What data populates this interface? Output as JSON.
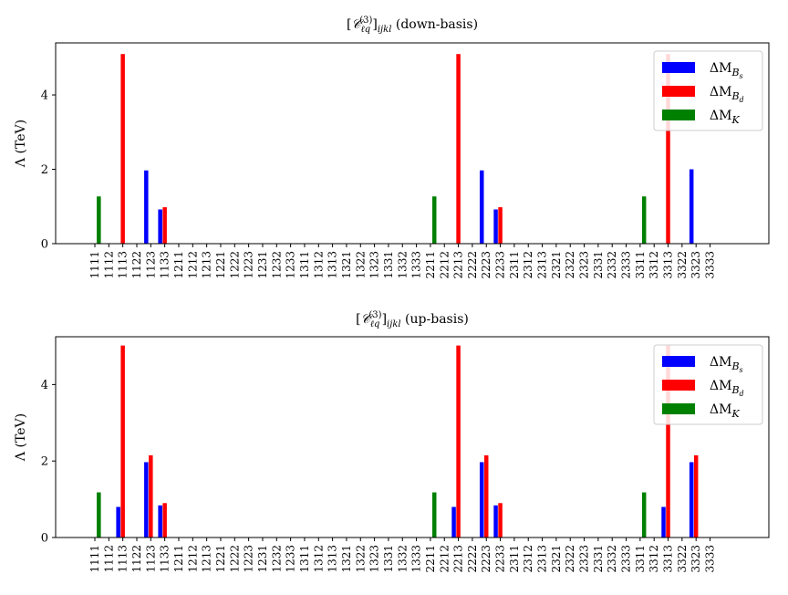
{
  "chart_data": [
    {
      "type": "bar",
      "title": "[C_ℓq^(3)]_ijkl (down-basis)",
      "ylabel": "Λ (TeV)",
      "ylim": [
        0,
        5.4
      ],
      "yticks": [
        0,
        2,
        4
      ],
      "legend_placement": "top-right",
      "grid": false,
      "categories": [
        "1111",
        "1112",
        "1113",
        "1122",
        "1123",
        "1133",
        "1211",
        "1212",
        "1213",
        "1221",
        "1222",
        "1223",
        "1231",
        "1232",
        "1233",
        "1311",
        "1312",
        "1313",
        "1321",
        "1322",
        "1323",
        "1331",
        "1332",
        "1333",
        "2211",
        "2212",
        "2213",
        "2222",
        "2223",
        "2233",
        "2311",
        "2312",
        "2313",
        "2321",
        "2322",
        "2323",
        "2331",
        "2332",
        "2333",
        "3311",
        "3312",
        "3313",
        "3322",
        "3323",
        "3333"
      ],
      "series": [
        {
          "name": "ΔM_Bs",
          "color": "#0000ff",
          "values": [
            0,
            0,
            0,
            0,
            1.97,
            0.92,
            0,
            0,
            0,
            0,
            0,
            0,
            0,
            0,
            0,
            0,
            0,
            0,
            0,
            0,
            0,
            0,
            0,
            0,
            0,
            0,
            0,
            0,
            1.97,
            0.92,
            0,
            0,
            0,
            0,
            0,
            0,
            0,
            0,
            0,
            0,
            0,
            0,
            0,
            2.0,
            0
          ]
        },
        {
          "name": "ΔM_Bd",
          "color": "#ff0000",
          "values": [
            0,
            0,
            5.1,
            0,
            0,
            0.98,
            0,
            0,
            0,
            0,
            0,
            0,
            0,
            0,
            0,
            0,
            0,
            0,
            0,
            0,
            0,
            0,
            0,
            0,
            0,
            0,
            5.1,
            0,
            0,
            0.98,
            0,
            0,
            0,
            0,
            0,
            0,
            0,
            0,
            0,
            0,
            0,
            5.1,
            0,
            0,
            0
          ]
        },
        {
          "name": "ΔM_K",
          "color": "#008000",
          "values": [
            0,
            1.27,
            0,
            0,
            0,
            0,
            0,
            0,
            0,
            0,
            0,
            0,
            0,
            0,
            0,
            0,
            0,
            0,
            0,
            0,
            0,
            0,
            0,
            0,
            0,
            1.27,
            0,
            0,
            0,
            0,
            0,
            0,
            0,
            0,
            0,
            0,
            0,
            0,
            0,
            0,
            1.27,
            0,
            0,
            0,
            0
          ]
        }
      ]
    },
    {
      "type": "bar",
      "title": "[C_ℓq^(3)]_ijkl (up-basis)",
      "ylabel": "Λ (TeV)",
      "ylim": [
        0,
        5.25
      ],
      "yticks": [
        0,
        2,
        4
      ],
      "legend_placement": "top-right",
      "grid": false,
      "categories": [
        "1111",
        "1112",
        "1113",
        "1122",
        "1123",
        "1133",
        "1211",
        "1212",
        "1213",
        "1221",
        "1222",
        "1223",
        "1231",
        "1232",
        "1233",
        "1311",
        "1312",
        "1313",
        "1321",
        "1322",
        "1323",
        "1331",
        "1332",
        "1333",
        "2211",
        "2212",
        "2213",
        "2222",
        "2223",
        "2233",
        "2311",
        "2312",
        "2313",
        "2321",
        "2322",
        "2323",
        "2331",
        "2332",
        "2333",
        "3311",
        "3312",
        "3313",
        "3322",
        "3323",
        "3333"
      ],
      "series": [
        {
          "name": "ΔM_Bs",
          "color": "#0000ff",
          "values": [
            0,
            0,
            0.8,
            0,
            1.97,
            0.84,
            0,
            0,
            0,
            0,
            0,
            0,
            0,
            0,
            0,
            0,
            0,
            0,
            0,
            0,
            0,
            0,
            0,
            0,
            0,
            0,
            0.8,
            0,
            1.97,
            0.84,
            0,
            0,
            0,
            0,
            0,
            0,
            0,
            0,
            0,
            0,
            0,
            0.8,
            0,
            1.97,
            0
          ]
        },
        {
          "name": "ΔM_Bd",
          "color": "#ff0000",
          "values": [
            0,
            0,
            5.02,
            0,
            2.15,
            0.9,
            0,
            0,
            0,
            0,
            0,
            0,
            0,
            0,
            0,
            0,
            0,
            0,
            0,
            0,
            0,
            0,
            0,
            0,
            0,
            0,
            5.02,
            0,
            2.15,
            0.9,
            0,
            0,
            0,
            0,
            0,
            0,
            0,
            0,
            0,
            0,
            0,
            5.02,
            0,
            2.15,
            0
          ]
        },
        {
          "name": "ΔM_K",
          "color": "#008000",
          "values": [
            0,
            1.18,
            0,
            0,
            0,
            0,
            0,
            0,
            0,
            0,
            0,
            0,
            0,
            0,
            0,
            0,
            0,
            0,
            0,
            0,
            0,
            0,
            0,
            0,
            0,
            1.18,
            0,
            0,
            0,
            0,
            0,
            0,
            0,
            0,
            0,
            0,
            0,
            0,
            0,
            0,
            1.18,
            0,
            0,
            0,
            0
          ]
        }
      ]
    }
  ]
}
